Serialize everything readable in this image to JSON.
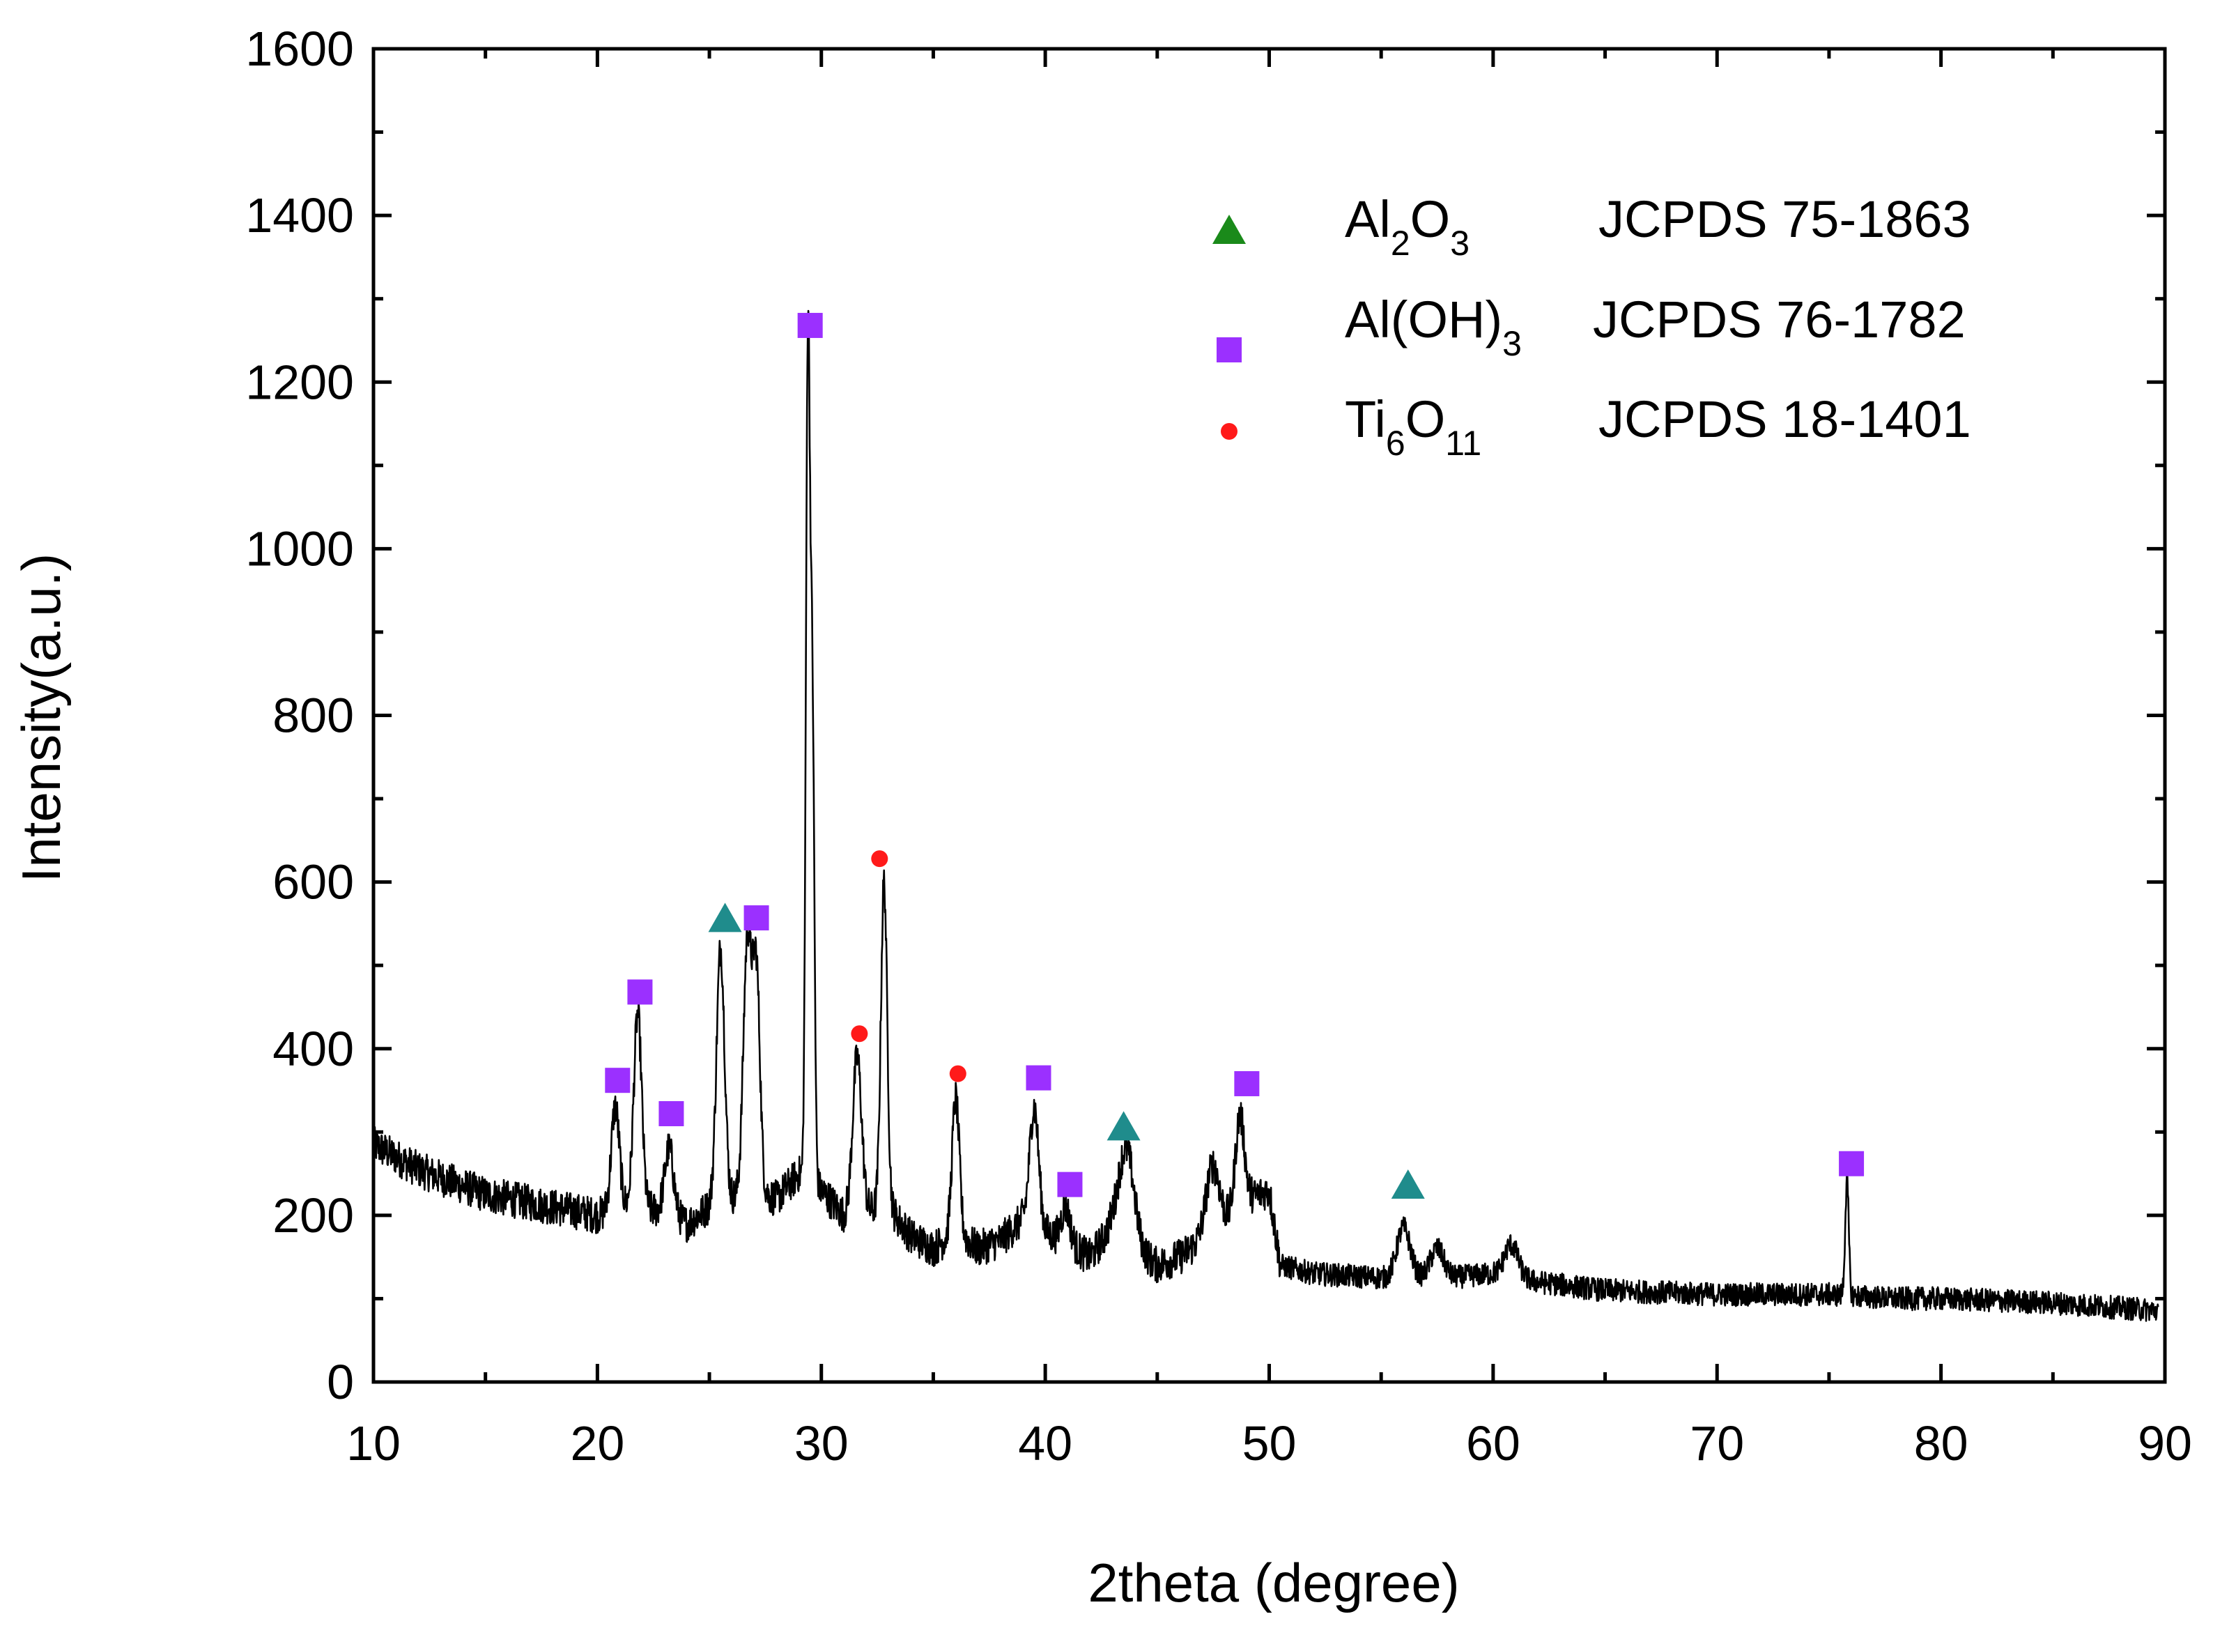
{
  "chart_data": {
    "type": "line",
    "xlabel": "2theta (degree)",
    "ylabel": "Intensity(a.u.)",
    "xlim": [
      10,
      90
    ],
    "ylim": [
      0,
      1600
    ],
    "x_ticks": [
      10,
      20,
      30,
      40,
      50,
      60,
      70,
      80,
      90
    ],
    "y_ticks": [
      0,
      200,
      400,
      600,
      800,
      1000,
      1200,
      1400,
      1600
    ],
    "x_tick_labels": [
      "10",
      "20",
      "30",
      "40",
      "50",
      "60",
      "70",
      "80",
      "90"
    ],
    "y_tick_labels": [
      "0",
      "200",
      "400",
      "600",
      "800",
      "1000",
      "1200",
      "1400",
      "1600"
    ],
    "grid": false,
    "legend_position": "top-right",
    "colors": {
      "line": "#000000",
      "al2o3_legend": "#1a8a1a",
      "al2o3_marker": "#1f8c8c",
      "aloh3": "#9b30ff",
      "ti6o11": "#ff1a1a"
    },
    "legend": [
      {
        "marker": "triangle",
        "main": "Al",
        "sub1": "2",
        "main2": "O",
        "sub2": "3",
        "ref": "JCPDS 75-1863"
      },
      {
        "marker": "square",
        "main": "Al(OH)",
        "sub1": "3",
        "main2": "",
        "sub2": "",
        "ref": "JCPDS 76-1782"
      },
      {
        "marker": "circle",
        "main": "Ti",
        "sub1": "6",
        "main2": "O",
        "sub2": "11",
        "ref": "JCPDS 18-1401"
      }
    ],
    "baseline": [
      [
        10,
        285
      ],
      [
        12,
        255
      ],
      [
        15,
        225
      ],
      [
        18,
        210
      ],
      [
        20,
        200
      ],
      [
        21,
        210
      ],
      [
        23,
        205
      ],
      [
        24,
        190
      ],
      [
        25,
        210
      ],
      [
        27,
        230
      ],
      [
        28,
        220
      ],
      [
        29,
        250
      ],
      [
        30,
        230
      ],
      [
        31,
        200
      ],
      [
        33,
        210
      ],
      [
        34,
        175
      ],
      [
        35,
        160
      ],
      [
        36,
        180
      ],
      [
        37,
        160
      ],
      [
        38,
        170
      ],
      [
        39,
        195
      ],
      [
        40,
        180
      ],
      [
        41,
        165
      ],
      [
        42,
        150
      ],
      [
        43,
        185
      ],
      [
        44,
        160
      ],
      [
        45,
        140
      ],
      [
        46,
        150
      ],
      [
        47,
        170
      ],
      [
        48,
        190
      ],
      [
        49,
        220
      ],
      [
        50,
        230
      ],
      [
        50.5,
        140
      ],
      [
        52,
        130
      ],
      [
        55,
        125
      ],
      [
        58,
        125
      ],
      [
        60,
        130
      ],
      [
        62,
        120
      ],
      [
        65,
        110
      ],
      [
        70,
        105
      ],
      [
        75,
        105
      ],
      [
        78,
        100
      ],
      [
        80,
        100
      ],
      [
        85,
        95
      ],
      [
        90,
        85
      ]
    ],
    "peaks": [
      {
        "x": 20.8,
        "y": 330,
        "w": 0.18
      },
      {
        "x": 21.8,
        "y": 440,
        "w": 0.18
      },
      {
        "x": 23.2,
        "y": 280,
        "w": 0.2
      },
      {
        "x": 25.5,
        "y": 520,
        "w": 0.18
      },
      {
        "x": 26.7,
        "y": 530,
        "w": 0.18
      },
      {
        "x": 27.1,
        "y": 490,
        "w": 0.16
      },
      {
        "x": 29.4,
        "y": 1240,
        "w": 0.09
      },
      {
        "x": 29.6,
        "y": 800,
        "w": 0.09
      },
      {
        "x": 31.6,
        "y": 390,
        "w": 0.2
      },
      {
        "x": 32.8,
        "y": 600,
        "w": 0.14
      },
      {
        "x": 36.0,
        "y": 340,
        "w": 0.16
      },
      {
        "x": 39.5,
        "y": 330,
        "w": 0.2
      },
      {
        "x": 40.9,
        "y": 210,
        "w": 0.2
      },
      {
        "x": 43.6,
        "y": 280,
        "w": 0.35
      },
      {
        "x": 47.5,
        "y": 260,
        "w": 0.3
      },
      {
        "x": 48.7,
        "y": 320,
        "w": 0.2
      },
      {
        "x": 56.0,
        "y": 185,
        "w": 0.3
      },
      {
        "x": 57.5,
        "y": 160,
        "w": 0.3
      },
      {
        "x": 60.8,
        "y": 165,
        "w": 0.3
      },
      {
        "x": 75.8,
        "y": 240,
        "w": 0.08
      }
    ],
    "markers": [
      {
        "phase": "Al(OH)3",
        "shape": "square",
        "x": 20.9,
        "y": 362
      },
      {
        "phase": "Al(OH)3",
        "shape": "square",
        "x": 21.9,
        "y": 468
      },
      {
        "phase": "Al(OH)3",
        "shape": "square",
        "x": 23.3,
        "y": 322
      },
      {
        "phase": "Al2O3",
        "shape": "triangle",
        "x": 25.7,
        "y": 555
      },
      {
        "phase": "Al(OH)3",
        "shape": "square",
        "x": 27.1,
        "y": 557
      },
      {
        "phase": "Al(OH)3",
        "shape": "square",
        "x": 29.5,
        "y": 1268
      },
      {
        "phase": "Ti6O11",
        "shape": "circle",
        "x": 31.7,
        "y": 418
      },
      {
        "phase": "Ti6O11",
        "shape": "circle",
        "x": 32.6,
        "y": 628
      },
      {
        "phase": "Ti6O11",
        "shape": "circle",
        "x": 36.1,
        "y": 370
      },
      {
        "phase": "Al(OH)3",
        "shape": "square",
        "x": 39.7,
        "y": 365
      },
      {
        "phase": "Al(OH)3",
        "shape": "square",
        "x": 41.1,
        "y": 237
      },
      {
        "phase": "Al2O3",
        "shape": "triangle",
        "x": 43.5,
        "y": 305
      },
      {
        "phase": "Al(OH)3",
        "shape": "square",
        "x": 49.0,
        "y": 358
      },
      {
        "phase": "Al2O3",
        "shape": "triangle",
        "x": 56.2,
        "y": 235
      },
      {
        "phase": "Al(OH)3",
        "shape": "square",
        "x": 76.0,
        "y": 262
      }
    ]
  }
}
